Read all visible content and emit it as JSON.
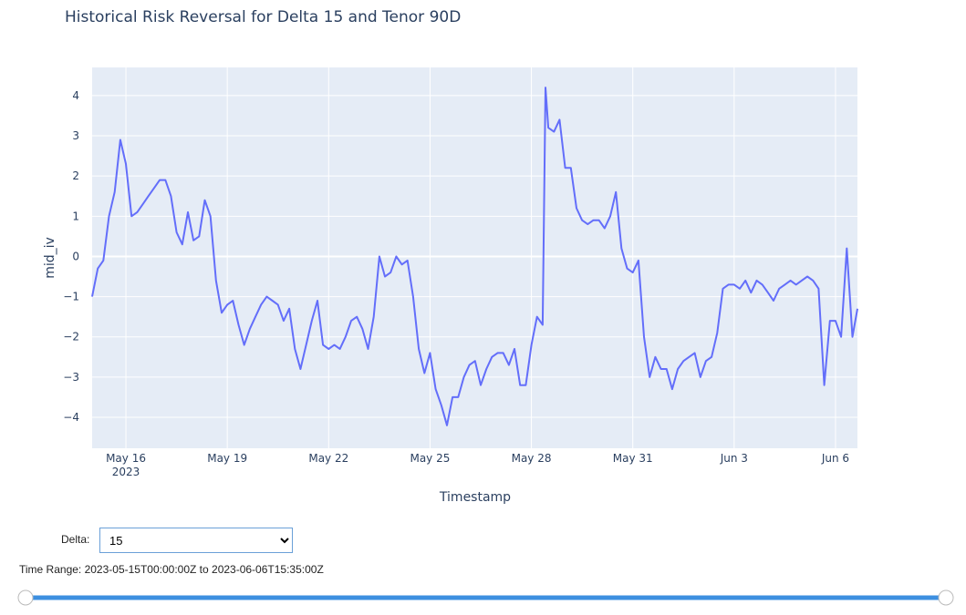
{
  "chart_data": {
    "type": "line",
    "title": "Historical Risk Reversal for Delta 15 and Tenor 90D",
    "x_label": "Timestamp",
    "y_label": "mid_iv",
    "x": [
      "2023-05-15T00:00",
      "2023-05-15T04:00",
      "2023-05-15T08:00",
      "2023-05-15T12:00",
      "2023-05-15T16:00",
      "2023-05-15T20:00",
      "2023-05-16T00:00",
      "2023-05-16T04:00",
      "2023-05-16T08:00",
      "2023-05-16T12:00",
      "2023-05-16T16:00",
      "2023-05-16T20:00",
      "2023-05-17T00:00",
      "2023-05-17T04:00",
      "2023-05-17T08:00",
      "2023-05-17T12:00",
      "2023-05-17T16:00",
      "2023-05-17T20:00",
      "2023-05-18T00:00",
      "2023-05-18T04:00",
      "2023-05-18T08:00",
      "2023-05-18T12:00",
      "2023-05-18T16:00",
      "2023-05-18T20:00",
      "2023-05-19T00:00",
      "2023-05-19T04:00",
      "2023-05-19T08:00",
      "2023-05-19T12:00",
      "2023-05-19T16:00",
      "2023-05-19T20:00",
      "2023-05-20T00:00",
      "2023-05-20T04:00",
      "2023-05-20T08:00",
      "2023-05-20T12:00",
      "2023-05-20T16:00",
      "2023-05-20T20:00",
      "2023-05-21T00:00",
      "2023-05-21T04:00",
      "2023-05-21T08:00",
      "2023-05-21T12:00",
      "2023-05-21T16:00",
      "2023-05-21T20:00",
      "2023-05-22T00:00",
      "2023-05-22T04:00",
      "2023-05-22T08:00",
      "2023-05-22T12:00",
      "2023-05-22T16:00",
      "2023-05-22T20:00",
      "2023-05-23T00:00",
      "2023-05-23T04:00",
      "2023-05-23T08:00",
      "2023-05-23T12:00",
      "2023-05-23T16:00",
      "2023-05-23T20:00",
      "2023-05-24T00:00",
      "2023-05-24T04:00",
      "2023-05-24T08:00",
      "2023-05-24T12:00",
      "2023-05-24T16:00",
      "2023-05-24T20:00",
      "2023-05-25T00:00",
      "2023-05-25T04:00",
      "2023-05-25T08:00",
      "2023-05-25T12:00",
      "2023-05-25T16:00",
      "2023-05-25T20:00",
      "2023-05-26T00:00",
      "2023-05-26T04:00",
      "2023-05-26T08:00",
      "2023-05-26T12:00",
      "2023-05-26T16:00",
      "2023-05-26T20:00",
      "2023-05-27T00:00",
      "2023-05-27T04:00",
      "2023-05-27T08:00",
      "2023-05-27T12:00",
      "2023-05-27T16:00",
      "2023-05-27T20:00",
      "2023-05-28T00:00",
      "2023-05-28T04:00",
      "2023-05-28T08:00",
      "2023-05-28T10:00",
      "2023-05-28T12:00",
      "2023-05-28T16:00",
      "2023-05-28T20:00",
      "2023-05-29T00:00",
      "2023-05-29T04:00",
      "2023-05-29T08:00",
      "2023-05-29T12:00",
      "2023-05-29T16:00",
      "2023-05-29T20:00",
      "2023-05-30T00:00",
      "2023-05-30T04:00",
      "2023-05-30T08:00",
      "2023-05-30T12:00",
      "2023-05-30T16:00",
      "2023-05-30T20:00",
      "2023-05-31T00:00",
      "2023-05-31T04:00",
      "2023-05-31T08:00",
      "2023-05-31T12:00",
      "2023-05-31T16:00",
      "2023-05-31T20:00",
      "2023-06-01T00:00",
      "2023-06-01T04:00",
      "2023-06-01T08:00",
      "2023-06-01T12:00",
      "2023-06-01T16:00",
      "2023-06-01T20:00",
      "2023-06-02T00:00",
      "2023-06-02T04:00",
      "2023-06-02T08:00",
      "2023-06-02T12:00",
      "2023-06-02T16:00",
      "2023-06-02T20:00",
      "2023-06-03T00:00",
      "2023-06-03T04:00",
      "2023-06-03T08:00",
      "2023-06-03T12:00",
      "2023-06-03T16:00",
      "2023-06-03T20:00",
      "2023-06-04T00:00",
      "2023-06-04T04:00",
      "2023-06-04T08:00",
      "2023-06-04T12:00",
      "2023-06-04T16:00",
      "2023-06-04T20:00",
      "2023-06-05T00:00",
      "2023-06-05T04:00",
      "2023-06-05T08:00",
      "2023-06-05T12:00",
      "2023-06-05T16:00",
      "2023-06-05T20:00",
      "2023-06-06T00:00",
      "2023-06-06T04:00",
      "2023-06-06T08:00",
      "2023-06-06T12:00",
      "2023-06-06T15:35"
    ],
    "series": [
      {
        "name": "mid_iv",
        "color": "#636efa",
        "values": [
          -1.0,
          -0.3,
          -0.1,
          1.0,
          1.6,
          2.9,
          2.3,
          1.0,
          1.1,
          1.3,
          1.5,
          1.7,
          1.9,
          1.9,
          1.5,
          0.6,
          0.3,
          1.1,
          0.4,
          0.5,
          1.4,
          1.0,
          -0.6,
          -1.4,
          -1.2,
          -1.1,
          -1.7,
          -2.2,
          -1.8,
          -1.5,
          -1.2,
          -1.0,
          -1.1,
          -1.2,
          -1.6,
          -1.3,
          -2.3,
          -2.8,
          -2.2,
          -1.6,
          -1.1,
          -2.2,
          -2.3,
          -2.2,
          -2.3,
          -2.0,
          -1.6,
          -1.5,
          -1.8,
          -2.3,
          -1.5,
          0.0,
          -0.5,
          -0.4,
          0.0,
          -0.2,
          -0.1,
          -1.0,
          -2.3,
          -2.9,
          -2.4,
          -3.3,
          -3.7,
          -4.2,
          -3.5,
          -3.5,
          -3.0,
          -2.7,
          -2.6,
          -3.2,
          -2.8,
          -2.5,
          -2.4,
          -2.4,
          -2.7,
          -2.3,
          -3.2,
          -3.2,
          -2.2,
          -1.5,
          -1.7,
          4.2,
          3.2,
          3.1,
          3.4,
          2.2,
          2.2,
          1.2,
          0.9,
          0.8,
          0.9,
          0.9,
          0.7,
          1.0,
          1.6,
          0.2,
          -0.3,
          -0.4,
          -0.1,
          -2.0,
          -3.0,
          -2.5,
          -2.8,
          -2.8,
          -3.3,
          -2.8,
          -2.6,
          -2.5,
          -2.4,
          -3.0,
          -2.6,
          -2.5,
          -1.9,
          -0.8,
          -0.7,
          -0.7,
          -0.8,
          -0.6,
          -0.9,
          -0.6,
          -0.7,
          -0.9,
          -1.1,
          -0.8,
          -0.7,
          -0.6,
          -0.7,
          -0.6,
          -0.5,
          -0.6,
          -0.8,
          -3.2,
          -1.6,
          -1.6,
          -2.0,
          0.2,
          -2.0,
          -1.3
        ]
      }
    ],
    "xlim": [
      "2023-05-15T00:00",
      "2023-06-06T15:35"
    ],
    "xticks": [
      {
        "value": "2023-05-16T00:00",
        "label": "May 16\n2023"
      },
      {
        "value": "2023-05-19T00:00",
        "label": "May 19"
      },
      {
        "value": "2023-05-22T00:00",
        "label": "May 22"
      },
      {
        "value": "2023-05-25T00:00",
        "label": "May 25"
      },
      {
        "value": "2023-05-28T00:00",
        "label": "May 28"
      },
      {
        "value": "2023-05-31T00:00",
        "label": "May 31"
      },
      {
        "value": "2023-06-03T00:00",
        "label": "Jun 3"
      },
      {
        "value": "2023-06-06T00:00",
        "label": "Jun 6"
      }
    ],
    "ylim": [
      -4.77,
      4.7
    ],
    "yticks": [
      {
        "value": -4,
        "label": "−4"
      },
      {
        "value": -3,
        "label": "−3"
      },
      {
        "value": -2,
        "label": "−2"
      },
      {
        "value": -1,
        "label": "−1"
      },
      0,
      1,
      2,
      3,
      4
    ],
    "grid": true
  },
  "controls": {
    "delta_label": "Delta:",
    "delta_value": "15",
    "time_range": "Time Range: 2023-05-15T00:00:00Z to 2023-06-06T15:35:00Z"
  }
}
